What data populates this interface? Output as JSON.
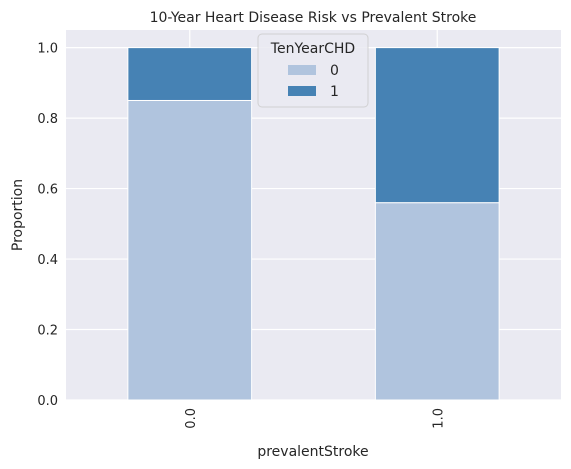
{
  "chart_data": {
    "type": "bar",
    "stacked": true,
    "title": "10-Year Heart Disease Risk vs Prevalent Stroke",
    "xlabel": "prevalentStroke",
    "ylabel": "Proportion",
    "categories": [
      "0.0",
      "1.0"
    ],
    "series": [
      {
        "name": "0",
        "values": [
          0.85,
          0.56
        ],
        "color": "#b0c4de"
      },
      {
        "name": "1",
        "values": [
          0.15,
          0.44
        ],
        "color": "#4682b4"
      }
    ],
    "ylim": [
      0,
      1.05
    ],
    "yticks": [
      "0.0",
      "0.2",
      "0.4",
      "0.6",
      "0.8",
      "1.0"
    ],
    "legend": {
      "title": "TenYearCHD",
      "position": "top-center"
    },
    "grid": true,
    "background": "#eaeaf2"
  }
}
